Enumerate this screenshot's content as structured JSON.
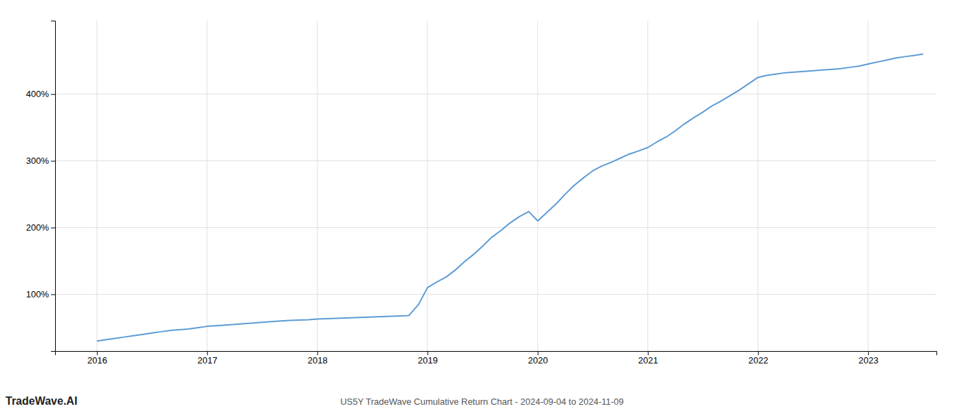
{
  "chart_data": {
    "type": "line",
    "title": "US5Y TradeWave Cumulative Return Chart - 2024-09-04 to 2024-11-09",
    "annotations": [
      "TradeWave.AI"
    ],
    "color": "#5b9bd5",
    "grid": true,
    "xlim": [
      2015.62,
      2023.62
    ],
    "ylim": [
      15,
      510
    ],
    "xticks": [
      2016,
      2017,
      2018,
      2019,
      2020,
      2021,
      2022,
      2023
    ],
    "yticks": [
      {
        "value": 100,
        "label": "100%"
      },
      {
        "value": 200,
        "label": "200%"
      },
      {
        "value": 300,
        "label": "300%"
      },
      {
        "value": 400,
        "label": "400%"
      }
    ],
    "x": [
      2016.0,
      2016.08,
      2016.17,
      2016.25,
      2016.33,
      2016.42,
      2016.5,
      2016.58,
      2016.67,
      2016.75,
      2016.83,
      2016.92,
      2017.0,
      2017.08,
      2017.17,
      2017.25,
      2017.33,
      2017.42,
      2017.5,
      2017.58,
      2017.67,
      2017.75,
      2017.83,
      2017.92,
      2018.0,
      2018.08,
      2018.17,
      2018.25,
      2018.33,
      2018.42,
      2018.5,
      2018.58,
      2018.67,
      2018.75,
      2018.83,
      2018.92,
      2019.0,
      2019.08,
      2019.17,
      2019.25,
      2019.33,
      2019.42,
      2019.5,
      2019.58,
      2019.67,
      2019.75,
      2019.83,
      2019.92,
      2020.0,
      2020.08,
      2020.17,
      2020.25,
      2020.33,
      2020.42,
      2020.5,
      2020.58,
      2020.67,
      2020.75,
      2020.83,
      2020.92,
      2021.0,
      2021.08,
      2021.17,
      2021.25,
      2021.33,
      2021.42,
      2021.5,
      2021.58,
      2021.67,
      2021.75,
      2021.83,
      2021.92,
      2022.0,
      2022.08,
      2022.17,
      2022.25,
      2022.33,
      2022.42,
      2022.5,
      2022.58,
      2022.67,
      2022.75,
      2022.83,
      2022.92,
      2023.0,
      2023.08,
      2023.17,
      2023.25,
      2023.33,
      2023.42,
      2023.5
    ],
    "values": [
      30,
      32,
      34,
      36,
      38,
      40,
      42,
      44,
      46,
      47,
      48,
      50,
      52,
      53,
      54,
      55,
      56,
      57,
      58,
      59,
      60,
      61,
      61.5,
      62,
      63,
      63.5,
      64,
      64.5,
      65,
      65.5,
      66,
      66.5,
      67,
      67.5,
      68,
      85,
      110,
      118,
      126,
      136,
      148,
      160,
      172,
      185,
      196,
      207,
      216,
      224,
      210,
      222,
      236,
      250,
      263,
      275,
      285,
      292,
      298,
      304,
      310,
      315,
      320,
      328,
      336,
      345,
      355,
      365,
      373,
      382,
      390,
      398,
      406,
      416,
      425,
      428,
      430,
      432,
      433,
      434,
      435,
      436,
      437,
      438,
      440,
      442,
      445,
      448,
      451,
      454,
      456,
      458,
      460
    ]
  }
}
